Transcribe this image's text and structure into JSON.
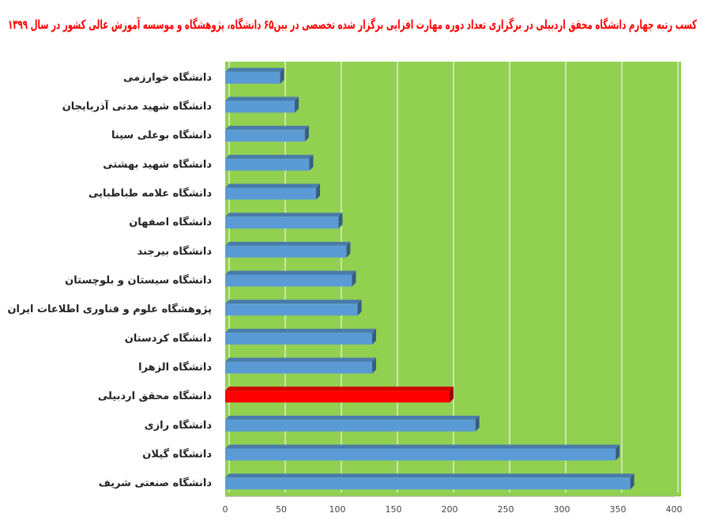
{
  "chart_data": {
    "type": "hbar",
    "title": "کسب رتبه چهارم دانشگاه محقق اردبیلی در برگزاری تعداد دوره مهارت افزایی برگزار شده تخصصی در بین۶۵  دانشگاه، پژوهشگاه و موسسه آموزش عالی کشور در سال ۱۳۹۹",
    "categories": [
      "دانشگاه خوارزمی",
      "دانشگاه شهید مدنی آذربایجان",
      "دانشگاه بوعلی سینا",
      "دانشگاه شهید بهشتی",
      "دانشگاه علامه طباطبایی",
      "دانشگاه اصفهان",
      "دانشگاه بیرجند",
      "دانشگاه سیستان و بلوچستان",
      "پژوهشگاه علوم و فناوری اطلاعات ایران",
      "دانشگاه کردستان",
      "دانشگاه الزهرا",
      "دانشگاه محقق اردبیلی",
      "دانشگاه رازی",
      "دانشگاه گیلان",
      "دانشگاه صنعتی شریف"
    ],
    "values": [
      49,
      62,
      71,
      75,
      81,
      101,
      108,
      113,
      118,
      131,
      131,
      200,
      223,
      348,
      361
    ],
    "colors": [
      "#5b9bd5",
      "#5b9bd5",
      "#5b9bd5",
      "#5b9bd5",
      "#5b9bd5",
      "#5b9bd5",
      "#5b9bd5",
      "#5b9bd5",
      "#5b9bd5",
      "#5b9bd5",
      "#5b9bd5",
      "#ff0000",
      "#5b9bd5",
      "#5b9bd5",
      "#5b9bd5"
    ],
    "xlim": [
      0,
      400
    ],
    "xticks": [
      0,
      50,
      100,
      150,
      200,
      250,
      300,
      350,
      400
    ],
    "grid": true,
    "plot_background": "#92d050"
  }
}
